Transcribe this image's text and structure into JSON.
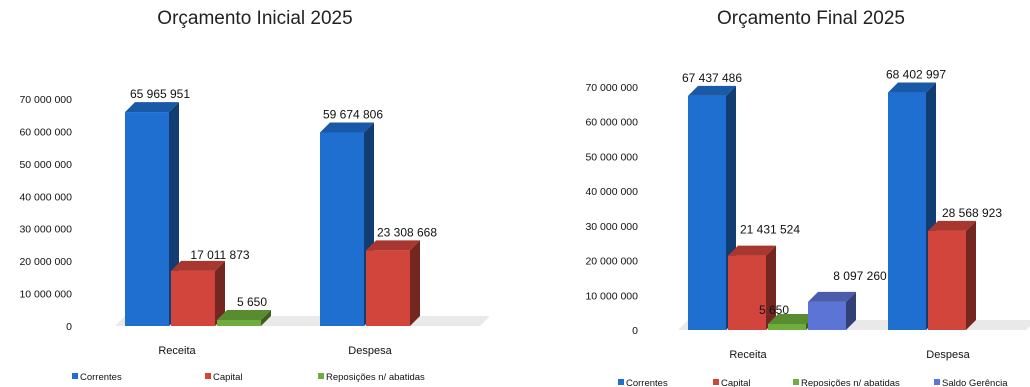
{
  "colors": {
    "correntes": "#1f6fd1",
    "capital": "#d2453c",
    "reposicoes": "#6fae3c",
    "saldo": "#5b74d6"
  },
  "chart_data": [
    {
      "type": "bar",
      "title": "Orçamento Inicial 2025",
      "categories": [
        "Receita",
        "Despesa"
      ],
      "ylim": [
        0,
        70000000
      ],
      "yticks": [
        "0",
        "10 000 000",
        "20 000 000",
        "30 000 000",
        "40 000 000",
        "50 000 000",
        "60 000 000",
        "70 000 000"
      ],
      "legend_position": "bottom",
      "series": [
        {
          "name": "Correntes",
          "color_key": "correntes",
          "values": [
            65965951,
            59674806
          ],
          "labels": [
            "65 965 951",
            "59 674 806"
          ]
        },
        {
          "name": "Capital",
          "color_key": "capital",
          "values": [
            17011873,
            23308668
          ],
          "labels": [
            "17 011 873",
            "23 308 668"
          ]
        },
        {
          "name": "Reposições n/ abatidas",
          "color_key": "reposicoes",
          "values": [
            5650,
            null
          ],
          "labels": [
            "5 650",
            ""
          ]
        }
      ]
    },
    {
      "type": "bar",
      "title": "Orçamento Final 2025",
      "categories": [
        "Receita",
        "Despesa"
      ],
      "ylim": [
        0,
        70000000
      ],
      "yticks": [
        "0",
        "10 000 000",
        "20 000 000",
        "30 000 000",
        "40 000 000",
        "50 000 000",
        "60 000 000",
        "70 000 000"
      ],
      "legend_position": "bottom",
      "series": [
        {
          "name": "Correntes",
          "color_key": "correntes",
          "values": [
            67437486,
            68402997
          ],
          "labels": [
            "67 437 486",
            "68 402 997"
          ]
        },
        {
          "name": "Capital",
          "color_key": "capital",
          "values": [
            21431524,
            28568923
          ],
          "labels": [
            "21 431 524",
            "28 568 923"
          ]
        },
        {
          "name": "Reposições n/ abatidas",
          "color_key": "reposicoes",
          "values": [
            5650,
            null
          ],
          "labels": [
            "5 650",
            ""
          ]
        },
        {
          "name": "Saldo Gerência",
          "color_key": "saldo",
          "values": [
            8097260,
            null
          ],
          "labels": [
            "8 097 260",
            ""
          ]
        }
      ]
    }
  ]
}
